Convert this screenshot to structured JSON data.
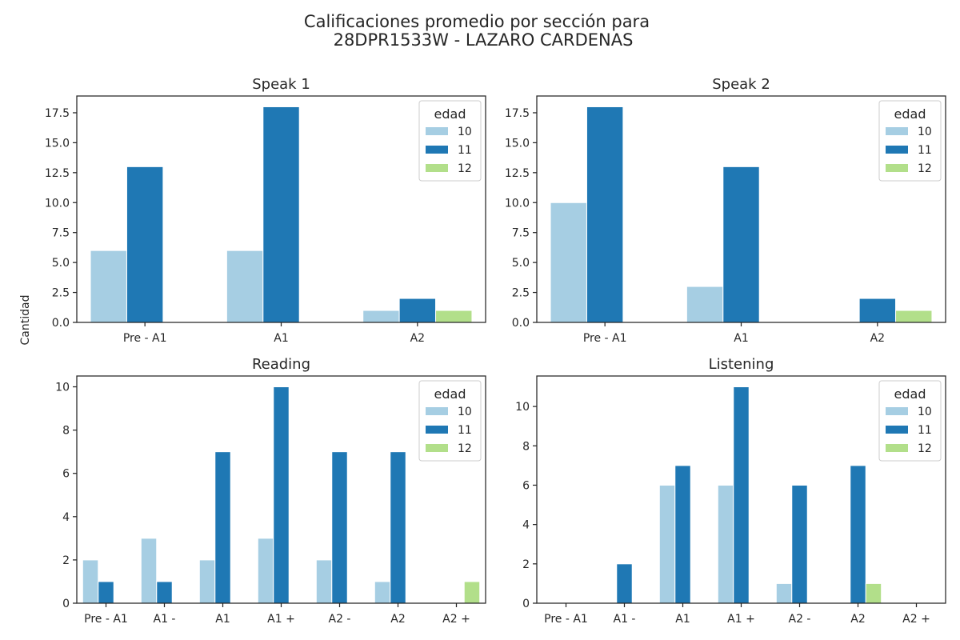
{
  "figure": {
    "title_line1": "Calificaciones promedio por sección para",
    "title_line2": "28DPR1533W - LAZARO CARDENAS",
    "ylabel": "Cantidad"
  },
  "legend": {
    "title": "edad",
    "entries": [
      {
        "label": "10",
        "color": "#a6cee3"
      },
      {
        "label": "11",
        "color": "#1f78b4"
      },
      {
        "label": "12",
        "color": "#b2df8a"
      }
    ]
  },
  "chart_data": [
    {
      "type": "bar",
      "title": "Speak 1",
      "categories": [
        "Pre - A1",
        "A1",
        "A2"
      ],
      "ylim": [
        0,
        18.9
      ],
      "yticks": [
        "0.0",
        "2.5",
        "5.0",
        "7.5",
        "10.0",
        "12.5",
        "15.0",
        "17.5"
      ],
      "ytick_values": [
        0,
        2.5,
        5,
        7.5,
        10,
        12.5,
        15,
        17.5
      ],
      "series": [
        {
          "name": "10",
          "values": [
            6,
            6,
            1
          ]
        },
        {
          "name": "11",
          "values": [
            13,
            18,
            2
          ]
        },
        {
          "name": "12",
          "values": [
            0,
            0,
            1
          ]
        }
      ]
    },
    {
      "type": "bar",
      "title": "Speak 2",
      "categories": [
        "Pre - A1",
        "A1",
        "A2"
      ],
      "ylim": [
        0,
        18.9
      ],
      "yticks": [
        "0.0",
        "2.5",
        "5.0",
        "7.5",
        "10.0",
        "12.5",
        "15.0",
        "17.5"
      ],
      "ytick_values": [
        0,
        2.5,
        5,
        7.5,
        10,
        12.5,
        15,
        17.5
      ],
      "series": [
        {
          "name": "10",
          "values": [
            10,
            3,
            0
          ]
        },
        {
          "name": "11",
          "values": [
            18,
            13,
            2
          ]
        },
        {
          "name": "12",
          "values": [
            0,
            0,
            1
          ]
        }
      ]
    },
    {
      "type": "bar",
      "title": "Reading",
      "categories": [
        "Pre - A1",
        "A1 -",
        "A1",
        "A1 +",
        "A2 -",
        "A2",
        "A2 +"
      ],
      "ylim": [
        0,
        10.5
      ],
      "yticks": [
        "0",
        "2",
        "4",
        "6",
        "8",
        "10"
      ],
      "ytick_values": [
        0,
        2,
        4,
        6,
        8,
        10
      ],
      "series": [
        {
          "name": "10",
          "values": [
            2,
            3,
            2,
            3,
            2,
            1,
            0
          ]
        },
        {
          "name": "11",
          "values": [
            1,
            1,
            7,
            10,
            7,
            7,
            0
          ]
        },
        {
          "name": "12",
          "values": [
            0,
            0,
            0,
            0,
            0,
            0,
            1
          ]
        }
      ]
    },
    {
      "type": "bar",
      "title": "Listening",
      "categories": [
        "Pre - A1",
        "A1 -",
        "A1",
        "A1 +",
        "A2 -",
        "A2",
        "A2 +"
      ],
      "ylim": [
        0,
        11.55
      ],
      "yticks": [
        "0",
        "2",
        "4",
        "6",
        "8",
        "10"
      ],
      "ytick_values": [
        0,
        2,
        4,
        6,
        8,
        10
      ],
      "series": [
        {
          "name": "10",
          "values": [
            0,
            0,
            6,
            6,
            1,
            0,
            0
          ]
        },
        {
          "name": "11",
          "values": [
            0,
            2,
            7,
            11,
            6,
            7,
            0
          ]
        },
        {
          "name": "12",
          "values": [
            0,
            0,
            0,
            0,
            0,
            1,
            0
          ]
        }
      ]
    }
  ]
}
